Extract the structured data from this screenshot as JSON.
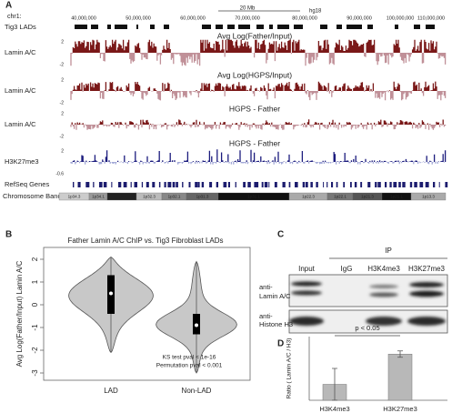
{
  "panel_a": {
    "label": "A",
    "chrom": "chr1:",
    "scale_bar": "20 Mb",
    "assembly": "hg18",
    "coordinates": [
      "40,000,000",
      "50,000,000",
      "60,000,000",
      "70,000,000",
      "80,000,000",
      "90,000,000",
      "100,000,000",
      "110,000,000"
    ],
    "lad_track": "Tig3 LADs",
    "tracks": [
      {
        "title": "Avg Log(Father/Input)",
        "label": "Lamin A/C",
        "scale_top": "2",
        "scale_bottom": "-2"
      },
      {
        "title": "Avg Log(HGPS/Input)",
        "label": "Lamin A/C",
        "scale_top": "2",
        "scale_bottom": "-2"
      },
      {
        "title": "HGPS - Father",
        "label": "Lamin A/C",
        "scale_top": "2",
        "scale_bottom": "-2"
      },
      {
        "title": "HGPS - Father",
        "label": "H3K27me3",
        "scale_top": "2",
        "scale_bottom": "-0.6"
      }
    ],
    "genes_track": "RefSeq Genes",
    "band_track": "Chromosome Band",
    "bands": [
      "1p34.3",
      "1p34.1",
      "1p33",
      "1p32.3",
      "1p32.1",
      "1p31.3",
      "1p31.1",
      "1p22.3",
      "1p22.1",
      "1p21.3",
      "1p21.1",
      "1p13.3"
    ]
  },
  "panel_b": {
    "label": "B",
    "title": "Father Lamin A/C ChIP vs. Tig3 Fibroblast LADs",
    "y_label": "Avg Log(Father/Input) Lamin A/C",
    "ylim": [
      -3.32,
      2.52
    ],
    "yticks": [
      2,
      1,
      0,
      -1,
      -2,
      -3
    ],
    "categories": [
      "LAD",
      "Non-LAD"
    ],
    "medians": [
      0.5,
      -0.9
    ],
    "q1": [
      -0.4,
      -1.3
    ],
    "q3": [
      1.3,
      -0.4
    ],
    "whisker_low": [
      -2.1,
      -3
    ],
    "whisker_high": [
      2.1,
      1.9
    ],
    "notes": [
      "KS test pval < 1e-16",
      "Permutation pval < 0.001"
    ]
  },
  "panel_c": {
    "label": "C",
    "ip": "IP",
    "lanes": [
      "Input",
      "IgG",
      "H3K4me3",
      "H3K27me3"
    ],
    "blot1": [
      "anti-",
      "Lamin A/C"
    ],
    "blot2": [
      "anti-",
      "Histone H3"
    ]
  },
  "panel_d": {
    "label": "D",
    "y_label": "Ratio ( Lamin A/C / H3)",
    "ylim": [
      0,
      2
    ],
    "categories": [
      "H3K4me3",
      "H3K27me3"
    ],
    "values": [
      0.5,
      1.45
    ],
    "errors": [
      0.5,
      0.1
    ],
    "annotation": "p < 0.05"
  }
}
